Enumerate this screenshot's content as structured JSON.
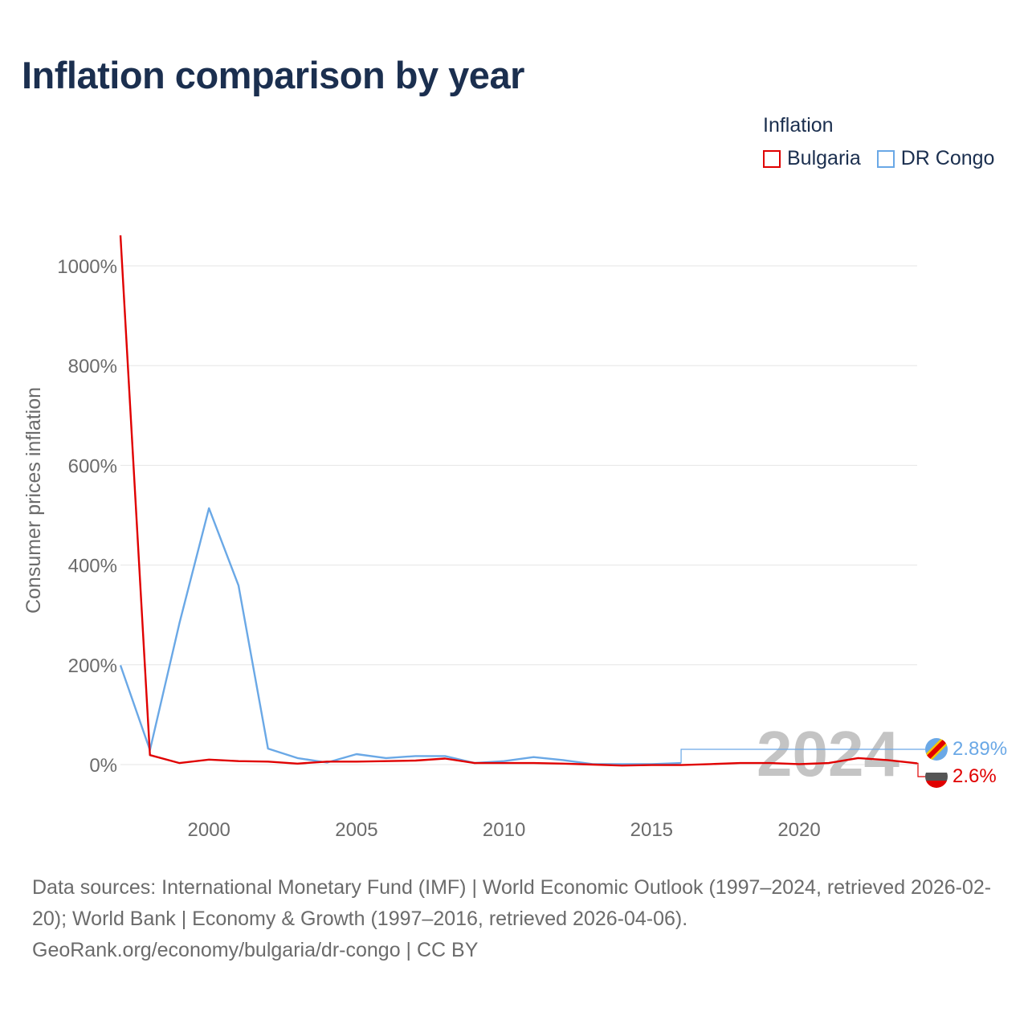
{
  "title": "Inflation comparison by year",
  "legend": {
    "title": "Inflation",
    "items": [
      {
        "name": "Bulgaria",
        "color": "#e00000"
      },
      {
        "name": "DR Congo",
        "color": "#6aa8e6"
      }
    ]
  },
  "chart_data": {
    "type": "line",
    "title": "Inflation comparison by year",
    "xlabel": "",
    "ylabel": "Consumer prices inflation",
    "xlim": [
      1997,
      2024
    ],
    "ylim": [
      -100,
      1060
    ],
    "y_ticks": [
      0,
      200,
      400,
      600,
      800,
      1000
    ],
    "y_tick_labels": [
      "0%",
      "200%",
      "400%",
      "600%",
      "800%",
      "1000%"
    ],
    "x_ticks": [
      2000,
      2005,
      2010,
      2015,
      2020
    ],
    "x_tick_labels": [
      "2000",
      "2005",
      "2010",
      "2015",
      "2020"
    ],
    "grid": true,
    "series": [
      {
        "name": "Bulgaria",
        "color": "#e00000",
        "x": [
          1997,
          1998,
          1999,
          2000,
          2001,
          2002,
          2003,
          2004,
          2005,
          2006,
          2007,
          2008,
          2009,
          2010,
          2011,
          2012,
          2013,
          2014,
          2015,
          2016,
          2017,
          2018,
          2019,
          2020,
          2021,
          2022,
          2023,
          2024
        ],
        "values": [
          1061,
          19,
          3,
          10,
          7,
          6,
          2,
          6,
          6,
          7,
          8,
          12,
          3,
          3,
          3,
          2,
          0,
          -2,
          -1,
          -1,
          1,
          3,
          3,
          1,
          3,
          13,
          9,
          2.6
        ]
      },
      {
        "name": "DR Congo",
        "color": "#6aa8e6",
        "x": [
          1997,
          1998,
          1999,
          2000,
          2001,
          2002,
          2003,
          2004,
          2005,
          2006,
          2007,
          2008,
          2009,
          2010,
          2011,
          2012,
          2013,
          2014,
          2015,
          2016
        ],
        "values": [
          199,
          29,
          284,
          514,
          359,
          32,
          13,
          4,
          21,
          13,
          17,
          17,
          3,
          7,
          15,
          9,
          1,
          1,
          1,
          3
        ]
      }
    ],
    "end_labels": [
      {
        "series": "DR Congo",
        "text": "2.89%",
        "color": "#6aa8e6"
      },
      {
        "series": "Bulgaria",
        "text": "2.6%",
        "color": "#e00000"
      }
    ],
    "year_watermark": "2024"
  },
  "footer": {
    "line1": "Data sources: International Monetary Fund (IMF) | World Economic Outlook (1997–2024, retrieved 2026-02-20); World Bank | Economy & Growth (1997–2016, retrieved 2026-04-06).",
    "line2": "GeoRank.org/economy/bulgaria/dr-congo | CC BY"
  }
}
